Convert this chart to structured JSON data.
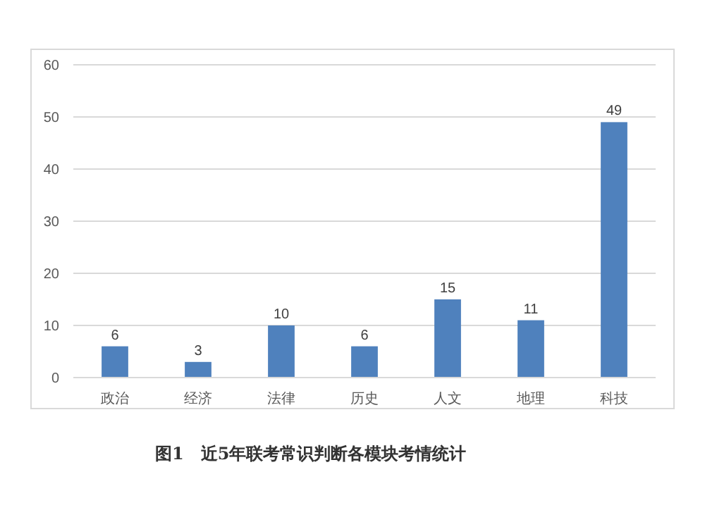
{
  "chart_data": {
    "type": "bar",
    "categories": [
      "政治",
      "经济",
      "法律",
      "历史",
      "人文",
      "地理",
      "科技"
    ],
    "values": [
      6,
      3,
      10,
      6,
      15,
      11,
      49
    ],
    "color": "#4f81bd",
    "data_labels": true,
    "ylim": [
      0,
      60
    ],
    "yticks": [
      0,
      10,
      20,
      30,
      40,
      50,
      60
    ],
    "grid": "y",
    "annotations": [
      "图1　近5年联考常识判断各模块考情统计"
    ]
  }
}
